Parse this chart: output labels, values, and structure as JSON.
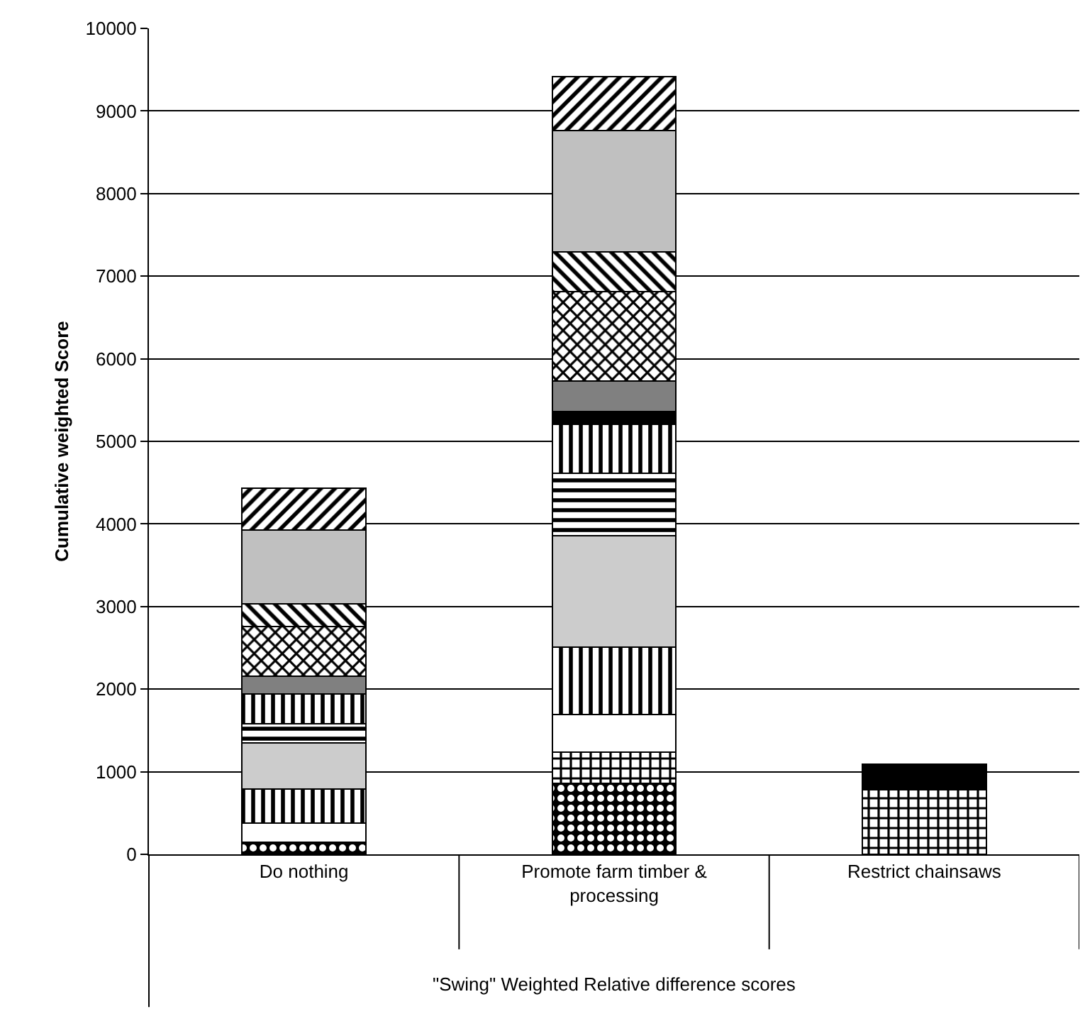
{
  "chart_data": {
    "type": "bar",
    "stacked": true,
    "xlabel": "\"Swing\" Weighted Relative difference scores",
    "ylabel": "Cumulative weighted Score",
    "categories": [
      "Do nothing",
      "Promote farm timber & processing",
      "Restrict chainsaws"
    ],
    "ylim": [
      0,
      10000
    ],
    "yticks": [
      0,
      1000,
      2000,
      3000,
      4000,
      5000,
      6000,
      7000,
      8000,
      9000,
      10000
    ],
    "grid": "y",
    "series": [
      {
        "color": "#000000",
        "values": [
          150,
          860,
          0
        ]
      },
      {
        "color": "#000000",
        "values": [
          0,
          380,
          780
        ]
      },
      {
        "color": "#ffffff",
        "values": [
          230,
          450,
          0
        ]
      },
      {
        "color": "#000000",
        "values": [
          410,
          820,
          0
        ]
      },
      {
        "color": "#cccccc",
        "values": [
          560,
          1350,
          0
        ]
      },
      {
        "color": "#000000",
        "values": [
          230,
          750,
          0
        ]
      },
      {
        "color": "#000000",
        "values": [
          360,
          600,
          0
        ]
      },
      {
        "color": "#000000",
        "values": [
          0,
          150,
          310
        ]
      },
      {
        "color": "#808080",
        "values": [
          220,
          370,
          0
        ]
      },
      {
        "color": "#000000",
        "values": [
          600,
          1080,
          0
        ]
      },
      {
        "color": "#000000",
        "values": [
          270,
          480,
          0
        ]
      },
      {
        "color": "#c0c0c0",
        "values": [
          900,
          1470,
          0
        ]
      },
      {
        "color": "#000000",
        "values": [
          500,
          660,
          0
        ]
      }
    ]
  }
}
